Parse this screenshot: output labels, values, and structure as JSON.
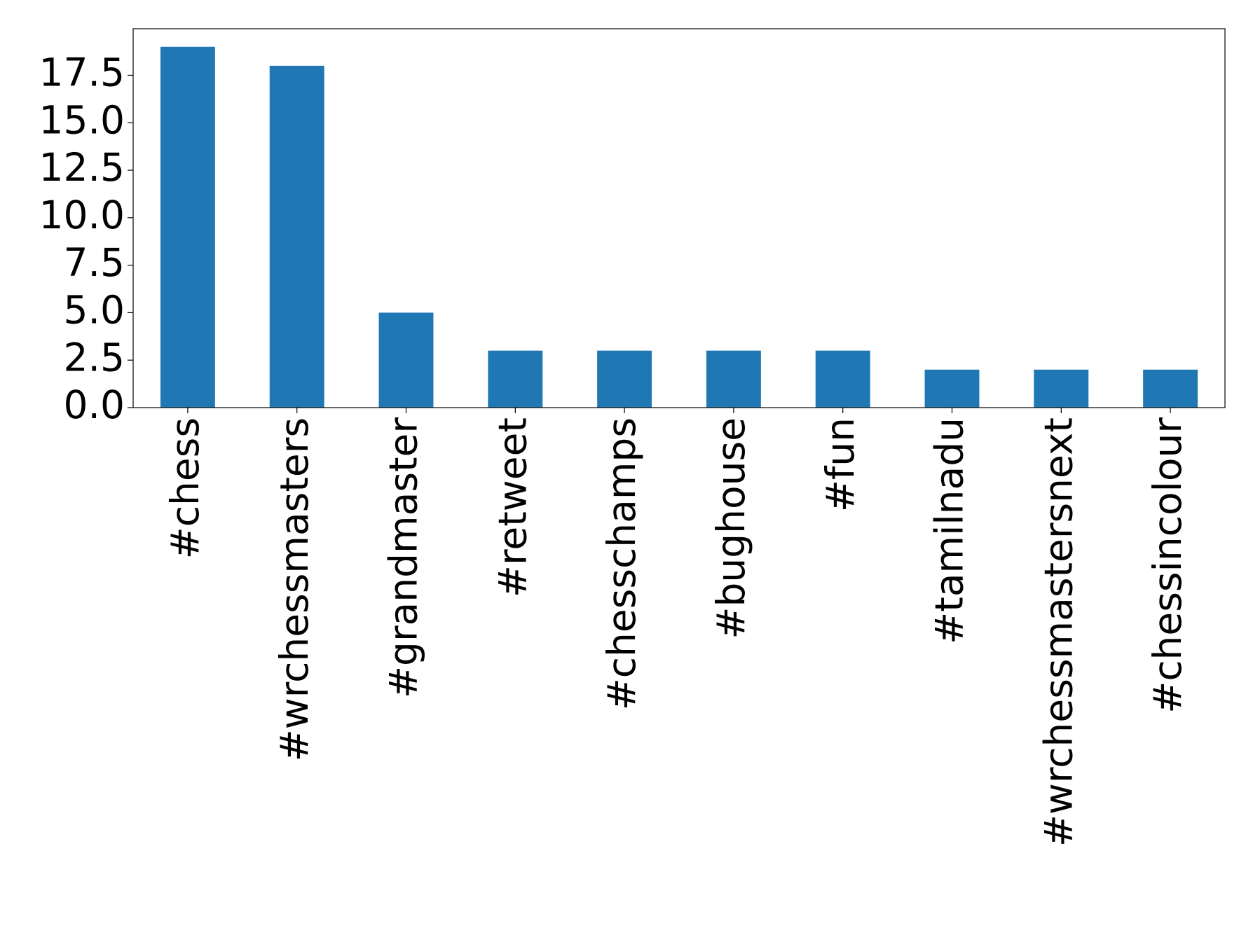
{
  "chart_data": {
    "type": "bar",
    "categories": [
      "#chess",
      "#wrchessmasters",
      "#grandmaster",
      "#retweet",
      "#chesschamps",
      "#bughouse",
      "#fun",
      "#tamilnadu",
      "#wrchessmastersnext",
      "#chessincolour"
    ],
    "values": [
      19,
      18,
      5,
      3,
      3,
      3,
      3,
      2,
      2,
      2
    ],
    "color": "#1f77b4",
    "ylim": [
      0,
      19.95
    ],
    "yticks": [
      {
        "value": 0,
        "label": "0.0"
      },
      {
        "value": 2.5,
        "label": "2.5"
      },
      {
        "value": 5,
        "label": "5.0"
      },
      {
        "value": 7.5,
        "label": "7.5"
      },
      {
        "value": 10,
        "label": "10.0"
      },
      {
        "value": 12.5,
        "label": "12.5"
      },
      {
        "value": 15,
        "label": "15.0"
      },
      {
        "value": 17.5,
        "label": "17.5"
      }
    ],
    "grid": false
  }
}
